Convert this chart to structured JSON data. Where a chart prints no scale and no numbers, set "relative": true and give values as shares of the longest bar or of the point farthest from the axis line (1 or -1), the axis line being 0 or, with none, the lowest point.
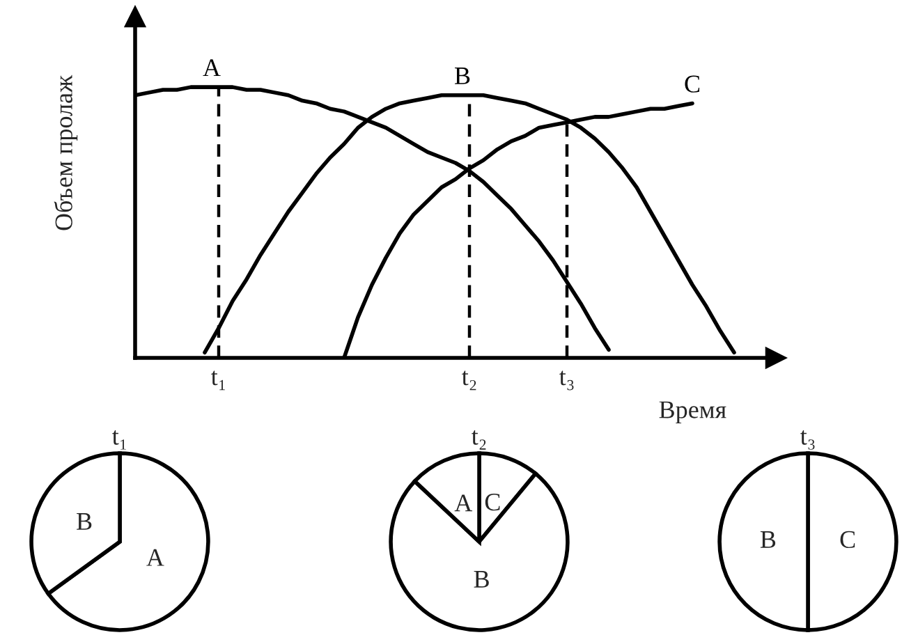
{
  "chart_data": [
    {
      "type": "line",
      "xlabel": "Время",
      "ylabel": "Объем пролаж",
      "relative": true,
      "line_style": "solid",
      "categories": [
        null,
        null,
        null,
        null,
        null,
        null,
        "t₁",
        null,
        null,
        null,
        null,
        null,
        null,
        null,
        null,
        null,
        null,
        null,
        null,
        null,
        null,
        null,
        null,
        null,
        "t₂",
        null,
        null,
        null,
        null,
        null,
        null,
        "t₃",
        null,
        null,
        null,
        null,
        null,
        null,
        null,
        null,
        null,
        null,
        null,
        null,
        null,
        null,
        null
      ],
      "series": [
        {
          "name": "A",
          "color": "#000000",
          "values": [
            0.97,
            0.98,
            0.99,
            0.99,
            1.0,
            1.0,
            1.0,
            1.0,
            0.99,
            0.99,
            0.98,
            0.97,
            0.95,
            0.94,
            0.92,
            0.91,
            0.89,
            0.87,
            0.85,
            0.82,
            0.79,
            0.76,
            0.74,
            0.72,
            0.69,
            0.65,
            0.6,
            0.55,
            0.49,
            0.43,
            0.36,
            0.28,
            0.2,
            0.11,
            0.03,
            null,
            null,
            null,
            null,
            null,
            null,
            null,
            null,
            null,
            null,
            null,
            null
          ]
        },
        {
          "name": "B",
          "color": "#000000",
          "values": [
            null,
            null,
            null,
            null,
            null,
            0.02,
            0.11,
            0.21,
            0.29,
            0.38,
            0.46,
            0.54,
            0.61,
            0.68,
            0.74,
            0.79,
            0.85,
            0.89,
            0.92,
            0.94,
            0.95,
            0.96,
            0.97,
            0.97,
            0.97,
            0.97,
            0.96,
            0.95,
            0.94,
            0.92,
            0.9,
            0.88,
            0.85,
            0.81,
            0.76,
            0.7,
            0.63,
            0.54,
            0.45,
            0.36,
            0.27,
            0.19,
            0.1,
            0.02,
            null,
            null,
            null
          ]
        },
        {
          "name": "C",
          "color": "#000000",
          "values": [
            null,
            null,
            null,
            null,
            null,
            null,
            null,
            null,
            null,
            null,
            null,
            null,
            null,
            null,
            null,
            0.0,
            0.15,
            0.27,
            0.37,
            0.46,
            0.53,
            0.58,
            0.63,
            0.66,
            0.7,
            0.73,
            0.77,
            0.8,
            0.82,
            0.85,
            0.86,
            0.87,
            0.88,
            0.89,
            0.89,
            0.9,
            0.91,
            0.92,
            0.92,
            0.93,
            0.94,
            null,
            null,
            null,
            null,
            null,
            null
          ]
        }
      ],
      "ref_lines": [
        {
          "axis": "x",
          "value": "t₁",
          "color": "#000000",
          "line_style": "dashed"
        },
        {
          "axis": "x",
          "value": "t₂",
          "color": "#000000",
          "line_style": "dashed"
        },
        {
          "axis": "x",
          "value": "t₃",
          "color": "#000000",
          "line_style": "dashed"
        }
      ]
    },
    {
      "type": "pie",
      "title": "t₁",
      "categories": [
        "A",
        "B"
      ],
      "values": [
        65,
        35
      ],
      "colors": [
        "#ffffff",
        "#ffffff"
      ]
    },
    {
      "type": "pie",
      "title": "t₂",
      "categories": [
        "C",
        "B",
        "A"
      ],
      "values": [
        11,
        76,
        13
      ],
      "colors": [
        "#ffffff",
        "#ffffff",
        "#ffffff"
      ]
    },
    {
      "type": "pie",
      "title": "t₃",
      "categories": [
        "C",
        "B"
      ],
      "values": [
        50,
        50
      ],
      "colors": [
        "#ffffff",
        "#ffffff"
      ]
    }
  ]
}
